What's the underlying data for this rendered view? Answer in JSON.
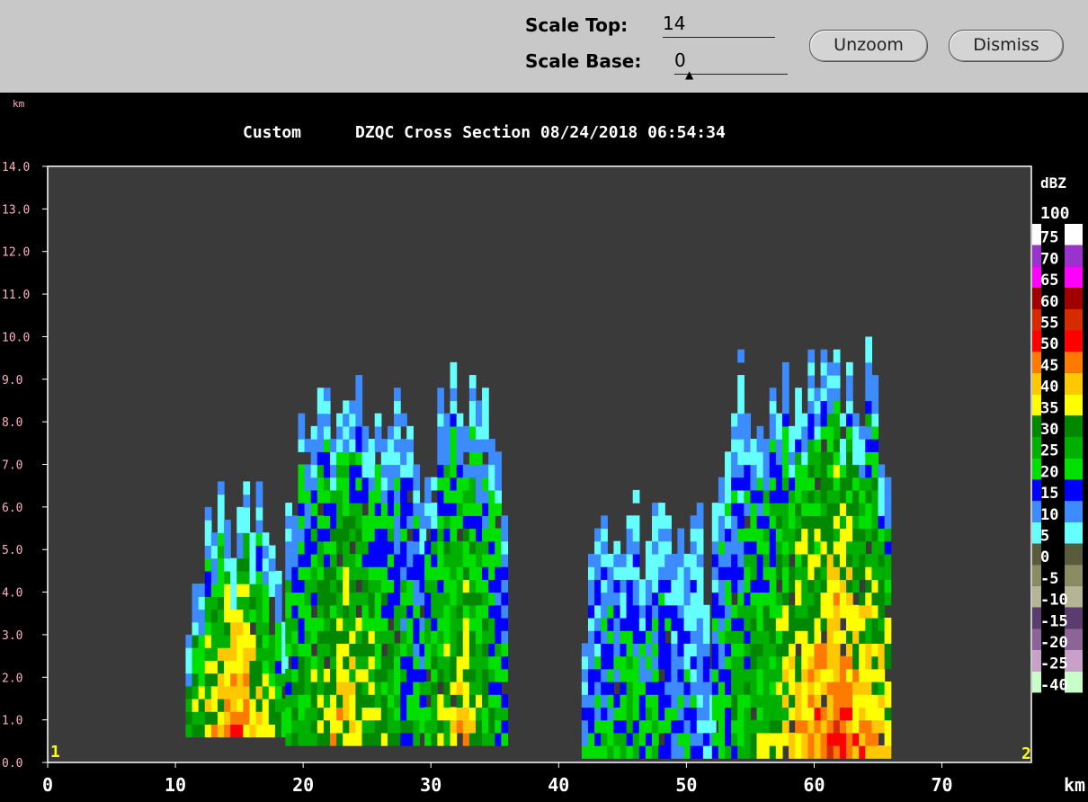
{
  "toolbar": {
    "scale_top_label": "Scale Top:",
    "scale_top_value": "14",
    "scale_base_label": "Scale Base:",
    "scale_base_value": "0",
    "unzoom_label": "Unzoom",
    "dismiss_label": "Dismiss"
  },
  "colors": {
    "plot_background": "#3a3a3a",
    "frame": "#ffffff"
  },
  "chart_data": {
    "type": "heatmap",
    "title_left": "Custom",
    "title": "DZQC Cross Section 08/24/2018 06:54:34",
    "ylabel": "km",
    "xlabel": "km",
    "xlim": [
      0,
      77
    ],
    "ylim": [
      0,
      14
    ],
    "x_ticks": [
      "0",
      "10",
      "20",
      "30",
      "40",
      "50",
      "60",
      "70"
    ],
    "y_ticks": [
      "0.0",
      "1.0",
      "2.0",
      "3.0",
      "4.0",
      "5.0",
      "6.0",
      "7.0",
      "8.0",
      "9.0",
      "10.0",
      "11.0",
      "12.0",
      "13.0",
      "14.0"
    ],
    "endpoint_markers": [
      "1",
      "2"
    ],
    "colorbar": {
      "unit": "dBZ",
      "top_label": "100",
      "levels": [
        {
          "label": "75",
          "color": "#ffffff"
        },
        {
          "label": "70",
          "color": "#9933cc"
        },
        {
          "label": "65",
          "color": "#ff00ff"
        },
        {
          "label": "60",
          "color": "#a00000"
        },
        {
          "label": "55",
          "color": "#d42c00"
        },
        {
          "label": "50",
          "color": "#ff0000"
        },
        {
          "label": "45",
          "color": "#ff7a00"
        },
        {
          "label": "40",
          "color": "#ffc800"
        },
        {
          "label": "35",
          "color": "#ffff00"
        },
        {
          "label": "30",
          "color": "#008800"
        },
        {
          "label": "25",
          "color": "#00b000"
        },
        {
          "label": "20",
          "color": "#00e000"
        },
        {
          "label": "15",
          "color": "#0000ff"
        },
        {
          "label": "10",
          "color": "#3c8cff"
        },
        {
          "label": "5",
          "color": "#66ffff"
        },
        {
          "label": "0",
          "color": "#5a5a3c"
        },
        {
          "label": "-5",
          "color": "#8c8c64"
        },
        {
          "label": "-10",
          "color": "#b4b496"
        },
        {
          "label": "-15",
          "color": "#5a3c6e"
        },
        {
          "label": "-20",
          "color": "#8c6496"
        },
        {
          "label": "-25",
          "color": "#c8a0c8"
        },
        {
          "label": "-40",
          "color": "#c8ffc8"
        }
      ]
    },
    "cells": {
      "x_step_km": 0.5,
      "y_step_km": 0.3,
      "storms": [
        {
          "x": [
            10.8,
            18.6
          ],
          "core": 14.5,
          "top": 6.6,
          "base": 0.6,
          "peak": 50
        },
        {
          "x": [
            18.6,
            29.5
          ],
          "core": 23.0,
          "top": 9.6,
          "base": 0.4,
          "peak": 42
        },
        {
          "x": [
            29.5,
            36.0
          ],
          "core": 32.0,
          "top": 9.6,
          "base": 0.4,
          "peak": 42
        },
        {
          "x": [
            41.8,
            52.0
          ],
          "core": 46.0,
          "top": 6.4,
          "base": 0.1,
          "peak": 26
        },
        {
          "x": [
            52.0,
            66.0
          ],
          "core": 61.5,
          "top": 9.8,
          "base": 0.1,
          "peak": 52
        }
      ]
    }
  }
}
